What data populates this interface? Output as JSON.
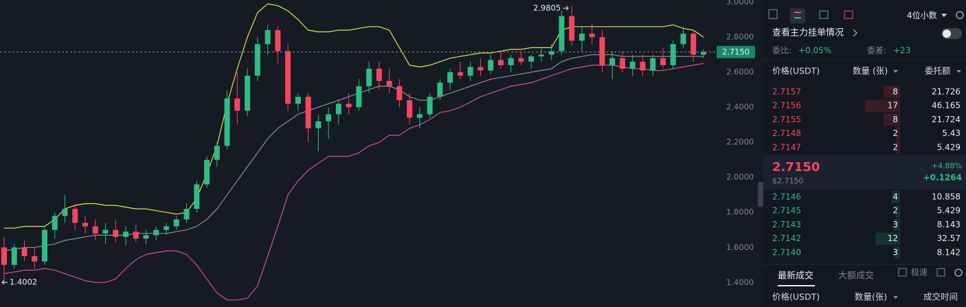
{
  "chart_data": {
    "type": "candlestick",
    "ylim": [
      1.26,
      3.012
    ],
    "yticks": [
      {
        "value": 3.0,
        "label": "3.0000"
      },
      {
        "value": 2.8,
        "label": "2.8000"
      },
      {
        "value": 2.6,
        "label": "2.6000"
      },
      {
        "value": 2.4,
        "label": "2.4000"
      },
      {
        "value": 2.2,
        "label": "2.2000"
      },
      {
        "value": 2.0,
        "label": "2.0000"
      },
      {
        "value": 1.8,
        "label": "1.8000"
      },
      {
        "value": 1.6,
        "label": "1.6000"
      },
      {
        "value": 1.4,
        "label": "1.4000"
      }
    ],
    "up_color": "#2ebd85",
    "down_color": "#f6465d",
    "ohlc": [
      [
        1.6,
        1.66,
        1.4002,
        1.5
      ],
      [
        1.5,
        1.62,
        1.48,
        1.6
      ],
      [
        1.6,
        1.64,
        1.52,
        1.55
      ],
      [
        1.55,
        1.6,
        1.48,
        1.52
      ],
      [
        1.52,
        1.72,
        1.5,
        1.7
      ],
      [
        1.7,
        1.8,
        1.65,
        1.78
      ],
      [
        1.78,
        1.9,
        1.74,
        1.82
      ],
      [
        1.82,
        1.85,
        1.7,
        1.74
      ],
      [
        1.74,
        1.78,
        1.68,
        1.72
      ],
      [
        1.72,
        1.76,
        1.64,
        1.68
      ],
      [
        1.68,
        1.74,
        1.62,
        1.7
      ],
      [
        1.7,
        1.76,
        1.63,
        1.66
      ],
      [
        1.66,
        1.72,
        1.61,
        1.69
      ],
      [
        1.69,
        1.73,
        1.63,
        1.65
      ],
      [
        1.65,
        1.7,
        1.62,
        1.67
      ],
      [
        1.67,
        1.72,
        1.64,
        1.7
      ],
      [
        1.7,
        1.74,
        1.67,
        1.72
      ],
      [
        1.72,
        1.78,
        1.7,
        1.76
      ],
      [
        1.76,
        1.85,
        1.74,
        1.82
      ],
      [
        1.82,
        1.98,
        1.8,
        1.96
      ],
      [
        1.96,
        2.12,
        1.94,
        2.1
      ],
      [
        2.1,
        2.2,
        2.06,
        2.18
      ],
      [
        2.18,
        2.5,
        2.16,
        2.45
      ],
      [
        2.45,
        2.6,
        2.3,
        2.38
      ],
      [
        2.38,
        2.62,
        2.35,
        2.58
      ],
      [
        2.58,
        2.8,
        2.55,
        2.76
      ],
      [
        2.76,
        2.87,
        2.7,
        2.84
      ],
      [
        2.84,
        2.86,
        2.65,
        2.72
      ],
      [
        2.72,
        2.76,
        2.38,
        2.42
      ],
      [
        2.42,
        2.48,
        2.38,
        2.46
      ],
      [
        2.46,
        2.48,
        2.2,
        2.28
      ],
      [
        2.28,
        2.36,
        2.15,
        2.32
      ],
      [
        2.32,
        2.4,
        2.22,
        2.36
      ],
      [
        2.36,
        2.44,
        2.3,
        2.42
      ],
      [
        2.42,
        2.48,
        2.36,
        2.4
      ],
      [
        2.4,
        2.56,
        2.38,
        2.52
      ],
      [
        2.52,
        2.66,
        2.48,
        2.62
      ],
      [
        2.62,
        2.66,
        2.5,
        2.55
      ],
      [
        2.55,
        2.62,
        2.48,
        2.52
      ],
      [
        2.52,
        2.56,
        2.4,
        2.44
      ],
      [
        2.44,
        2.48,
        2.3,
        2.34
      ],
      [
        2.34,
        2.4,
        2.28,
        2.36
      ],
      [
        2.36,
        2.48,
        2.34,
        2.46
      ],
      [
        2.46,
        2.56,
        2.44,
        2.54
      ],
      [
        2.54,
        2.62,
        2.5,
        2.6
      ],
      [
        2.6,
        2.66,
        2.56,
        2.58
      ],
      [
        2.58,
        2.66,
        2.55,
        2.63
      ],
      [
        2.63,
        2.68,
        2.58,
        2.61
      ],
      [
        2.61,
        2.7,
        2.59,
        2.67
      ],
      [
        2.67,
        2.72,
        2.62,
        2.64
      ],
      [
        2.64,
        2.7,
        2.6,
        2.68
      ],
      [
        2.68,
        2.72,
        2.64,
        2.66
      ],
      [
        2.66,
        2.7,
        2.62,
        2.69
      ],
      [
        2.69,
        2.74,
        2.66,
        2.7
      ],
      [
        2.7,
        2.76,
        2.67,
        2.72
      ],
      [
        2.72,
        2.95,
        2.7,
        2.92
      ],
      [
        2.92,
        2.9805,
        2.75,
        2.78
      ],
      [
        2.78,
        2.86,
        2.72,
        2.82
      ],
      [
        2.82,
        2.88,
        2.76,
        2.8
      ],
      [
        2.8,
        2.84,
        2.6,
        2.64
      ],
      [
        2.64,
        2.72,
        2.56,
        2.68
      ],
      [
        2.68,
        2.72,
        2.6,
        2.62
      ],
      [
        2.62,
        2.7,
        2.58,
        2.66
      ],
      [
        2.66,
        2.7,
        2.58,
        2.61
      ],
      [
        2.61,
        2.7,
        2.58,
        2.68
      ],
      [
        2.68,
        2.74,
        2.62,
        2.64
      ],
      [
        2.64,
        2.78,
        2.62,
        2.76
      ],
      [
        2.76,
        2.86,
        2.74,
        2.82
      ],
      [
        2.82,
        2.84,
        2.66,
        2.7
      ],
      [
        2.7,
        2.73,
        2.68,
        2.715
      ]
    ],
    "bands": [
      {
        "color": "#e6e83c",
        "values": [
          1.71,
          1.71,
          1.72,
          1.72,
          1.72,
          1.76,
          1.82,
          1.84,
          1.85,
          1.85,
          1.84,
          1.84,
          1.83,
          1.82,
          1.82,
          1.81,
          1.8,
          1.79,
          1.8,
          1.88,
          2.02,
          2.18,
          2.42,
          2.62,
          2.8,
          2.94,
          2.99,
          2.98,
          2.95,
          2.9,
          2.84,
          2.83,
          2.83,
          2.84,
          2.84,
          2.85,
          2.86,
          2.86,
          2.84,
          2.74,
          2.64,
          2.63,
          2.64,
          2.66,
          2.68,
          2.69,
          2.7,
          2.71,
          2.71,
          2.72,
          2.73,
          2.73,
          2.74,
          2.74,
          2.74,
          2.84,
          2.86,
          2.86,
          2.86,
          2.86,
          2.86,
          2.86,
          2.86,
          2.86,
          2.86,
          2.86,
          2.87,
          2.85,
          2.84,
          2.8
        ]
      },
      {
        "color": "#8b919c",
        "values": [
          1.58,
          1.59,
          1.6,
          1.6,
          1.61,
          1.62,
          1.64,
          1.65,
          1.66,
          1.67,
          1.67,
          1.67,
          1.67,
          1.68,
          1.68,
          1.68,
          1.68,
          1.69,
          1.7,
          1.72,
          1.76,
          1.82,
          1.9,
          1.98,
          2.06,
          2.14,
          2.22,
          2.28,
          2.32,
          2.36,
          2.38,
          2.4,
          2.42,
          2.44,
          2.46,
          2.48,
          2.5,
          2.52,
          2.52,
          2.5,
          2.46,
          2.44,
          2.44,
          2.46,
          2.48,
          2.5,
          2.52,
          2.54,
          2.56,
          2.57,
          2.58,
          2.59,
          2.6,
          2.61,
          2.62,
          2.66,
          2.68,
          2.69,
          2.7,
          2.7,
          2.7,
          2.69,
          2.69,
          2.69,
          2.69,
          2.69,
          2.69,
          2.69,
          2.69,
          2.69
        ]
      },
      {
        "color": "#e0489a",
        "values": [
          1.45,
          1.46,
          1.47,
          1.47,
          1.48,
          1.47,
          1.45,
          1.43,
          1.41,
          1.4,
          1.4,
          1.42,
          1.48,
          1.53,
          1.56,
          1.57,
          1.58,
          1.58,
          1.56,
          1.5,
          1.42,
          1.34,
          1.3,
          1.3,
          1.31,
          1.38,
          1.55,
          1.72,
          1.9,
          1.98,
          2.04,
          2.08,
          2.12,
          2.12,
          2.12,
          2.14,
          2.18,
          2.2,
          2.24,
          2.24,
          2.28,
          2.3,
          2.33,
          2.37,
          2.38,
          2.4,
          2.43,
          2.46,
          2.48,
          2.5,
          2.52,
          2.53,
          2.54,
          2.56,
          2.58,
          2.6,
          2.62,
          2.63,
          2.64,
          2.64,
          2.64,
          2.63,
          2.62,
          2.62,
          2.61,
          2.61,
          2.62,
          2.63,
          2.64,
          2.65
        ]
      }
    ],
    "last_price": {
      "value": 2.715,
      "label": "2.7150"
    },
    "high_label": {
      "value": 2.9805,
      "label": "2.9805"
    },
    "low_label": {
      "value": 1.4002,
      "label": "1.4002"
    }
  },
  "order_book": {
    "precision": "4位小数",
    "main_orders": "查看主力挂单情况",
    "ratio_label": "委比:",
    "ratio": "+0.05%",
    "diff_label": "委差:",
    "diff": "+23",
    "headers": [
      "价格(USDT)",
      "数量 (张)",
      "委托额"
    ],
    "asks": [
      [
        "2.7157",
        8,
        21.726
      ],
      [
        "2.7156",
        17,
        46.165
      ],
      [
        "2.7155",
        8,
        21.724
      ],
      [
        "2.7148",
        2,
        5.43
      ],
      [
        "2.7147",
        2,
        5.429
      ]
    ],
    "last_price": "2.7150",
    "last_price_usd": "$2.7150",
    "change_pct": "+4.88%",
    "change": "+0.1264",
    "bids": [
      [
        "2.7146",
        4,
        10.858
      ],
      [
        "2.7145",
        2,
        5.429
      ],
      [
        "2.7143",
        3,
        8.143
      ],
      [
        "2.7142",
        12,
        32.57
      ],
      [
        "2.7140",
        3,
        8.142
      ]
    ]
  },
  "trades": {
    "tabs": [
      "最新成交",
      "大额成交"
    ],
    "fast": "极速",
    "headers": [
      "价格(USDT)",
      "数量(张)",
      "成交时间"
    ]
  }
}
